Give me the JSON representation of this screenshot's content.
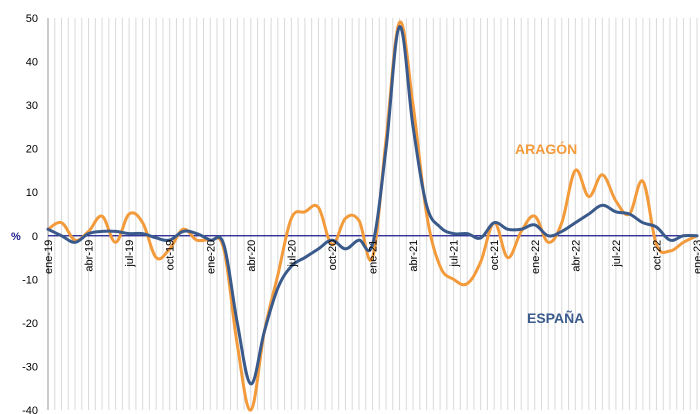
{
  "chart_data": {
    "type": "line",
    "x_labels_shown": [
      "ene-19",
      "abr-19",
      "jul-19",
      "oct-19",
      "ene-20",
      "abr-20",
      "jul-20",
      "oct-20",
      "ene-21",
      "abr-21",
      "jul-21",
      "oct-21",
      "ene-22",
      "abr-22",
      "jul-22",
      "oct-22",
      "ene-23"
    ],
    "x": [
      "ene-19",
      "feb-19",
      "mar-19",
      "abr-19",
      "may-19",
      "jun-19",
      "jul-19",
      "ago-19",
      "sep-19",
      "oct-19",
      "nov-19",
      "dic-19",
      "ene-20",
      "feb-20",
      "mar-20",
      "abr-20",
      "may-20",
      "jun-20",
      "jul-20",
      "ago-20",
      "sep-20",
      "oct-20",
      "nov-20",
      "dic-20",
      "ene-21",
      "feb-21",
      "mar-21",
      "abr-21",
      "may-21",
      "jun-21",
      "jul-21",
      "ago-21",
      "sep-21",
      "oct-21",
      "nov-21",
      "dic-21",
      "ene-22",
      "feb-22",
      "mar-22",
      "abr-22",
      "may-22",
      "jun-22",
      "jul-22",
      "ago-22",
      "sep-22",
      "oct-22",
      "nov-22",
      "dic-22",
      "ene-23"
    ],
    "series": [
      {
        "name": "ARAGÓN",
        "color": "#f39a3b",
        "values": [
          1.5,
          3,
          -1,
          1,
          4.5,
          -1.5,
          5,
          3,
          -5,
          -3,
          1.5,
          -1,
          -1,
          -3,
          -25,
          -40,
          -22,
          -9,
          4,
          5.5,
          6.5,
          -2,
          4,
          3.5,
          -5,
          22,
          49,
          30,
          5,
          -7,
          -10,
          -11,
          -6,
          3,
          -5,
          1,
          4.5,
          -1.5,
          3,
          15,
          9,
          14,
          8,
          5,
          12.5,
          -2,
          -3.5,
          -1.5,
          0
        ]
      },
      {
        "name": "ESPAÑA",
        "color": "#3a5a8c",
        "values": [
          1.5,
          0,
          -1.5,
          0.5,
          1,
          1,
          0.5,
          0.5,
          -0.5,
          -1,
          1,
          0.5,
          -1,
          -2,
          -20,
          -34,
          -22,
          -12,
          -7,
          -5,
          -3,
          -1,
          -3,
          -1,
          -2,
          20,
          48,
          25,
          7,
          2,
          0.5,
          0.5,
          -0.5,
          3,
          1.5,
          1.5,
          2.5,
          0,
          1,
          3,
          5,
          7,
          5.5,
          5,
          3,
          2,
          -1,
          0,
          0
        ]
      }
    ],
    "ylim": [
      -40,
      50
    ],
    "yticks": [
      "50",
      "40",
      "30",
      "20",
      "10",
      "0",
      "-10",
      "-20",
      "-30",
      "-40"
    ],
    "ylabel": "%",
    "grid": true
  }
}
